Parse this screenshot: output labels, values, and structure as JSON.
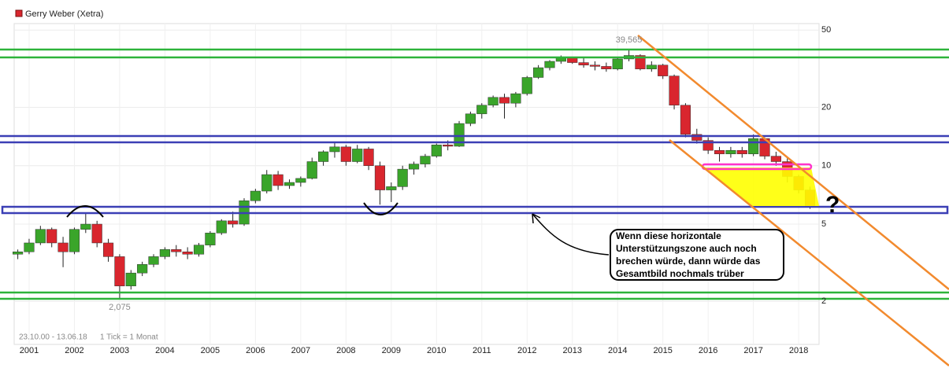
{
  "chart_data": {
    "type": "candlestick",
    "log_scale": true,
    "grid": true,
    "series": [
      {
        "name": "Gerry Weber (Xetra)",
        "color": "#d9262e",
        "up_color": "#3aa52a",
        "down_color": "#d9262e",
        "x": [
          2000.75,
          2001.0,
          2001.25,
          2001.5,
          2001.75,
          2002.0,
          2002.25,
          2002.5,
          2002.75,
          2003.0,
          2003.25,
          2003.5,
          2003.75,
          2004.0,
          2004.25,
          2004.5,
          2004.75,
          2005.0,
          2005.25,
          2005.5,
          2005.75,
          2006.0,
          2006.25,
          2006.5,
          2006.75,
          2007.0,
          2007.25,
          2007.5,
          2007.75,
          2008.0,
          2008.25,
          2008.5,
          2008.75,
          2009.0,
          2009.25,
          2009.5,
          2009.75,
          2010.0,
          2010.25,
          2010.5,
          2010.75,
          2011.0,
          2011.25,
          2011.5,
          2011.75,
          2012.0,
          2012.25,
          2012.5,
          2012.75,
          2013.0,
          2013.25,
          2013.5,
          2013.75,
          2014.0,
          2014.25,
          2014.5,
          2014.75,
          2015.0,
          2015.25,
          2015.5,
          2015.75,
          2016.0,
          2016.25,
          2016.5,
          2016.75,
          2017.0,
          2017.25,
          2017.5,
          2017.75,
          2018.0,
          2018.25
        ],
        "open": [
          3.5,
          3.6,
          4.0,
          4.7,
          4.0,
          3.6,
          4.7,
          5.0,
          4.0,
          3.4,
          2.4,
          2.8,
          3.1,
          3.4,
          3.7,
          3.6,
          3.5,
          3.9,
          4.5,
          5.2,
          5.0,
          6.6,
          7.4,
          9.0,
          7.9,
          8.2,
          8.6,
          10.5,
          11.8,
          12.5,
          10.5,
          12.2,
          10.0,
          7.5,
          7.8,
          9.6,
          10.2,
          11.2,
          12.8,
          12.6,
          16.5,
          18.5,
          20.5,
          22.5,
          21.0,
          23.5,
          28.5,
          32.0,
          34.5,
          36.0,
          34.0,
          33.0,
          32.5,
          31.5,
          35.5,
          37.0,
          31.5,
          33.0,
          29.0,
          20.5,
          14.5,
          13.5,
          12.0,
          11.5,
          12.0,
          11.5,
          13.8,
          11.2,
          10.5,
          8.8,
          7.5
        ],
        "high": [
          3.7,
          4.2,
          4.9,
          4.8,
          4.3,
          4.8,
          5.7,
          5.2,
          4.2,
          3.5,
          2.9,
          3.2,
          3.5,
          3.8,
          3.9,
          3.8,
          4.0,
          4.6,
          5.3,
          5.8,
          6.8,
          7.6,
          9.5,
          9.4,
          8.5,
          8.8,
          11.0,
          12.0,
          13.2,
          12.8,
          12.8,
          12.5,
          10.5,
          8.2,
          10.0,
          10.5,
          11.5,
          13.0,
          13.5,
          17.0,
          19.0,
          21.0,
          23.0,
          23.5,
          24.0,
          29.0,
          33.0,
          35.0,
          37.0,
          36.5,
          36.0,
          34.5,
          34.0,
          36.0,
          39.565,
          37.5,
          34.5,
          33.5,
          29.5,
          21.0,
          15.5,
          14.0,
          12.5,
          12.5,
          12.5,
          14.5,
          14.0,
          11.8,
          11.0,
          9.0,
          7.8
        ],
        "low": [
          3.3,
          3.5,
          3.9,
          3.8,
          3.0,
          3.5,
          4.5,
          3.8,
          3.2,
          2.075,
          2.3,
          2.7,
          3.0,
          3.3,
          3.4,
          3.3,
          3.4,
          3.8,
          4.4,
          4.8,
          4.9,
          6.4,
          7.2,
          7.5,
          7.6,
          7.8,
          8.5,
          10.0,
          11.0,
          10.0,
          10.3,
          9.5,
          6.3,
          6.5,
          7.5,
          9.0,
          9.8,
          11.0,
          12.0,
          12.5,
          16.0,
          17.5,
          20.0,
          17.5,
          20.0,
          23.0,
          28.0,
          31.0,
          33.5,
          33.5,
          32.0,
          31.0,
          30.5,
          31.0,
          34.5,
          31.0,
          30.5,
          28.0,
          19.5,
          14.0,
          13.0,
          11.5,
          10.5,
          11.0,
          11.0,
          11.2,
          10.8,
          10.0,
          8.2,
          7.2,
          6.0
        ],
        "close": [
          3.6,
          4.0,
          4.7,
          4.0,
          3.6,
          4.7,
          5.0,
          4.0,
          3.4,
          2.4,
          2.8,
          3.1,
          3.4,
          3.7,
          3.6,
          3.5,
          3.9,
          4.5,
          5.2,
          5.0,
          6.6,
          7.4,
          9.0,
          7.9,
          8.2,
          8.6,
          10.5,
          11.8,
          12.5,
          10.5,
          12.2,
          10.0,
          7.5,
          7.8,
          9.6,
          10.2,
          11.2,
          12.8,
          12.6,
          16.5,
          18.5,
          20.5,
          22.5,
          21.0,
          23.5,
          28.5,
          32.0,
          34.5,
          36.0,
          34.0,
          33.0,
          32.5,
          31.5,
          35.5,
          37.0,
          31.5,
          33.0,
          29.0,
          20.5,
          14.5,
          13.5,
          12.0,
          11.5,
          12.0,
          11.5,
          13.8,
          11.2,
          10.5,
          8.8,
          7.5,
          6.2
        ]
      }
    ],
    "xlim": [
      2000.67,
      2018.45
    ],
    "xticks": [
      2001,
      2002,
      2003,
      2004,
      2005,
      2006,
      2007,
      2008,
      2009,
      2010,
      2011,
      2012,
      2013,
      2014,
      2015,
      2016,
      2017,
      2018
    ],
    "ylim": [
      1.2,
      54
    ],
    "yticks": [
      2,
      5,
      10,
      20,
      50
    ],
    "extreme_labels": {
      "max": "39,565",
      "min": "2,075"
    },
    "date_range": "23.10.00 - 13.06.18",
    "tick_info": "1 Tick = 1 Monat",
    "annotation": [
      "Wenn diese horizontale",
      "Unterstützungszone auch noch",
      "brechen würde, dann würde das",
      "Gesamtbild nochmals trüber"
    ],
    "question": "?"
  }
}
